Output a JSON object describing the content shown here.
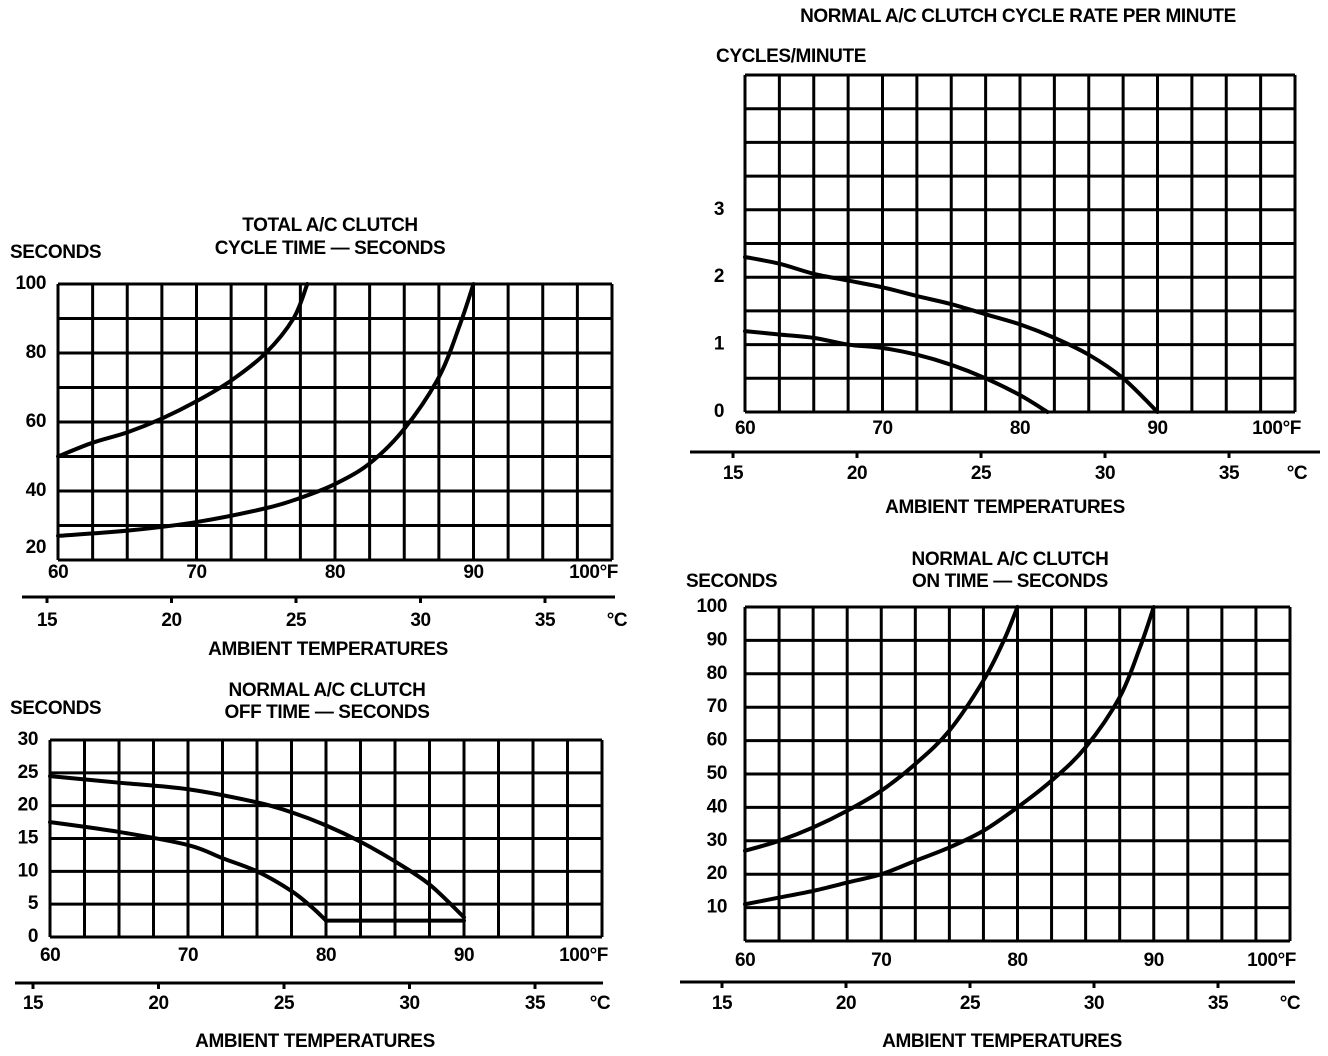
{
  "chart_data": [
    {
      "type": "line",
      "title": [
        "TOTAL A/C CLUTCH",
        "CYCLE TIME — SECONDS"
      ],
      "ylabel": "SECONDS",
      "xlabel": "AMBIENT TEMPERATURES",
      "xlim": [
        60,
        100
      ],
      "ylim": [
        20,
        100
      ],
      "ystep": 10,
      "yticks": [
        100,
        80,
        60,
        40,
        20
      ],
      "xticks": [
        {
          "value": 60,
          "label": "60"
        },
        {
          "value": 70,
          "label": "70"
        },
        {
          "value": 80,
          "label": "80"
        },
        {
          "value": 90,
          "label": "90"
        },
        {
          "value": 100,
          "label": "100°F"
        }
      ],
      "celsius_ticks": [
        "15",
        "20",
        "25",
        "30",
        "35"
      ],
      "celsius_unit": "°C",
      "grid": true,
      "series": [
        {
          "name": "upper",
          "x": [
            60,
            62.5,
            65,
            67.5,
            70,
            72.5,
            75,
            77,
            78
          ],
          "y": [
            50,
            54,
            57,
            61,
            66,
            72,
            80,
            90,
            100
          ]
        },
        {
          "name": "lower",
          "x": [
            60,
            65,
            70,
            75,
            77.5,
            80,
            82.5,
            85,
            87.5,
            89,
            90
          ],
          "y": [
            27,
            28.5,
            31,
            35,
            38,
            42,
            48,
            58,
            73,
            88,
            100
          ]
        }
      ]
    },
    {
      "type": "line",
      "title": [
        "NORMAL A/C CLUTCH CYCLE RATE PER MINUTE"
      ],
      "ylabel": "CYCLES/MINUTE",
      "xlabel": "AMBIENT TEMPERATURES",
      "xlim": [
        60,
        100
      ],
      "ylim": [
        0,
        5
      ],
      "ystep": 0.5,
      "yticks": [
        3,
        2,
        1,
        0
      ],
      "xticks": [
        {
          "value": 60,
          "label": "60"
        },
        {
          "value": 70,
          "label": "70"
        },
        {
          "value": 80,
          "label": "80"
        },
        {
          "value": 90,
          "label": "90"
        },
        {
          "value": 100,
          "label": "100°F"
        }
      ],
      "celsius_ticks": [
        "15",
        "20",
        "25",
        "30",
        "35"
      ],
      "celsius_unit": "°C",
      "grid": true,
      "series": [
        {
          "name": "upper",
          "x": [
            60,
            62.5,
            65,
            67.5,
            70,
            72.5,
            75,
            77.5,
            80,
            82.5,
            85,
            87.5,
            90
          ],
          "y": [
            2.3,
            2.2,
            2.05,
            1.95,
            1.85,
            1.72,
            1.6,
            1.45,
            1.3,
            1.1,
            0.85,
            0.5,
            0
          ]
        },
        {
          "name": "lower",
          "x": [
            60,
            62.5,
            65,
            67.5,
            70,
            72.5,
            75,
            77.5,
            80,
            82
          ],
          "y": [
            1.2,
            1.15,
            1.1,
            1.0,
            0.95,
            0.85,
            0.7,
            0.5,
            0.25,
            0
          ]
        }
      ]
    },
    {
      "type": "line",
      "title": [
        "NORMAL A/C CLUTCH",
        "OFF TIME — SECONDS"
      ],
      "ylabel": "SECONDS",
      "xlabel": "AMBIENT TEMPERATURES",
      "xlim": [
        60,
        100
      ],
      "ylim": [
        0,
        30
      ],
      "ystep": 5,
      "yticks": [
        30,
        25,
        20,
        15,
        10,
        5,
        0
      ],
      "xticks": [
        {
          "value": 60,
          "label": "60"
        },
        {
          "value": 70,
          "label": "70"
        },
        {
          "value": 80,
          "label": "80"
        },
        {
          "value": 90,
          "label": "90"
        },
        {
          "value": 100,
          "label": "100°F"
        }
      ],
      "celsius_ticks": [
        "15",
        "20",
        "25",
        "30",
        "35"
      ],
      "celsius_unit": "°C",
      "grid": true,
      "series": [
        {
          "name": "upper",
          "x": [
            60,
            65,
            70,
            75,
            77.5,
            80,
            82.5,
            85,
            87.5,
            90
          ],
          "y": [
            24.5,
            23.5,
            22.5,
            20.5,
            19,
            17,
            14.5,
            11.5,
            8,
            3
          ]
        },
        {
          "name": "lower",
          "x": [
            60,
            65,
            70,
            72.5,
            75,
            77.5,
            79,
            80
          ],
          "y": [
            17.5,
            16,
            14,
            12,
            10,
            7,
            4.5,
            2.5
          ]
        },
        {
          "name": "floor",
          "x": [
            80,
            90
          ],
          "y": [
            2.5,
            2.5
          ]
        }
      ]
    },
    {
      "type": "line",
      "title": [
        "NORMAL A/C CLUTCH",
        "ON TIME — SECONDS"
      ],
      "ylabel": "SECONDS",
      "xlabel": "AMBIENT TEMPERATURES",
      "xlim": [
        60,
        100
      ],
      "ylim": [
        0,
        100
      ],
      "ystep": 10,
      "yticks": [
        100,
        90,
        80,
        70,
        60,
        50,
        40,
        30,
        20,
        10
      ],
      "xticks": [
        {
          "value": 60,
          "label": "60"
        },
        {
          "value": 70,
          "label": "70"
        },
        {
          "value": 80,
          "label": "80"
        },
        {
          "value": 90,
          "label": "90"
        },
        {
          "value": 100,
          "label": "100°F"
        }
      ],
      "celsius_ticks": [
        "15",
        "20",
        "25",
        "30",
        "35"
      ],
      "celsius_unit": "°C",
      "grid": true,
      "series": [
        {
          "name": "upper",
          "x": [
            60,
            62.5,
            65,
            67.5,
            70,
            72.5,
            75,
            77.5,
            79,
            80
          ],
          "y": [
            27,
            30,
            34,
            39,
            45,
            53,
            63,
            78,
            90,
            100
          ]
        },
        {
          "name": "lower",
          "x": [
            60,
            62.5,
            65,
            67.5,
            70,
            72.5,
            75,
            77.5,
            80,
            82.5,
            85,
            87.5,
            89,
            90
          ],
          "y": [
            11,
            13,
            15,
            17.5,
            20,
            24,
            28,
            33,
            40,
            48,
            58,
            73,
            88,
            100
          ]
        }
      ]
    }
  ]
}
